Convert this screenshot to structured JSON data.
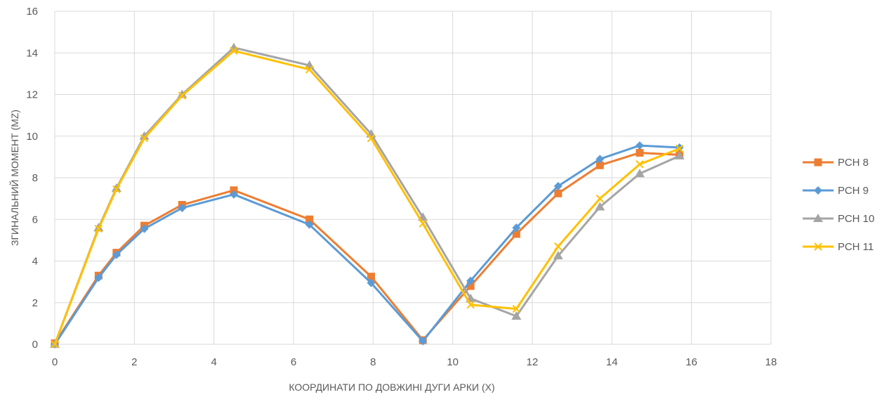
{
  "chart_data": {
    "type": "line",
    "title": "",
    "xlabel": "КООРДИНАТИ ПО ДОВЖИНІ ДУГИ АРКИ (X)",
    "ylabel": "ЗГИНАЛЬНИЙ МОМЕНТ (MZ)",
    "xlim": [
      0,
      18
    ],
    "ylim": [
      0,
      16
    ],
    "x_ticks": [
      0,
      2,
      4,
      6,
      8,
      10,
      12,
      14,
      16,
      18
    ],
    "y_ticks": [
      0,
      2,
      4,
      6,
      8,
      10,
      12,
      14,
      16
    ],
    "grid": true,
    "legend_position": "right",
    "series": [
      {
        "name": "РСН 8",
        "color": "#ed7d31",
        "marker": "square",
        "x": [
          0,
          1.1,
          1.55,
          2.25,
          3.2,
          4.5,
          6.4,
          7.95,
          9.25,
          10.45,
          11.6,
          12.65,
          13.7,
          14.7,
          15.7
        ],
        "y": [
          0.05,
          3.3,
          4.4,
          5.7,
          6.7,
          7.4,
          6.0,
          3.25,
          0.2,
          2.8,
          5.3,
          7.25,
          8.6,
          9.2,
          9.1
        ]
      },
      {
        "name": "РСН 9",
        "color": "#5b9bd5",
        "marker": "diamond",
        "x": [
          0,
          1.1,
          1.55,
          2.25,
          3.2,
          4.5,
          6.4,
          7.95,
          9.25,
          10.45,
          11.6,
          12.65,
          13.7,
          14.7,
          15.7
        ],
        "y": [
          0.0,
          3.2,
          4.3,
          5.55,
          6.55,
          7.2,
          5.75,
          2.95,
          0.15,
          3.05,
          5.6,
          7.6,
          8.9,
          9.55,
          9.45
        ]
      },
      {
        "name": "РСН 10",
        "color": "#a5a5a5",
        "marker": "triangle",
        "x": [
          0,
          1.1,
          1.55,
          2.25,
          3.2,
          4.5,
          6.4,
          7.95,
          9.25,
          10.45,
          11.6,
          12.65,
          13.7,
          14.7,
          15.7
        ],
        "y": [
          0.0,
          5.6,
          7.5,
          10.0,
          12.0,
          14.25,
          13.4,
          10.1,
          6.1,
          2.2,
          1.35,
          4.25,
          6.6,
          8.2,
          9.05
        ]
      },
      {
        "name": "РСН 11",
        "color": "#ffc000",
        "marker": "x",
        "x": [
          0,
          1.1,
          1.55,
          2.25,
          3.2,
          4.5,
          6.4,
          7.95,
          9.25,
          10.45,
          11.6,
          12.65,
          13.7,
          14.7,
          15.7
        ],
        "y": [
          0.0,
          5.55,
          7.45,
          9.9,
          11.95,
          14.1,
          13.2,
          9.9,
          5.8,
          1.9,
          1.7,
          4.7,
          7.0,
          8.65,
          9.4
        ]
      }
    ]
  }
}
